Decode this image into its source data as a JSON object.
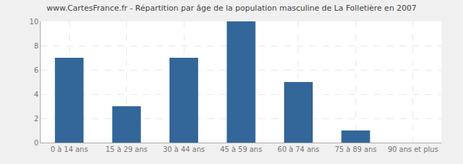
{
  "chart_data": {
    "type": "bar",
    "title": "www.CartesFrance.fr - Répartition par âge de la population masculine de La Folletière en 2007",
    "categories": [
      "0 à 14 ans",
      "15 à 29 ans",
      "30 à 44 ans",
      "45 à 59 ans",
      "60 à 74 ans",
      "75 à 89 ans",
      "90 ans et plus"
    ],
    "values": [
      7,
      3,
      7,
      10,
      5,
      1,
      0
    ],
    "color": "#336699",
    "ylim": [
      0,
      10
    ],
    "yticks": [
      0,
      2,
      4,
      6,
      8,
      10
    ],
    "grid": true
  }
}
